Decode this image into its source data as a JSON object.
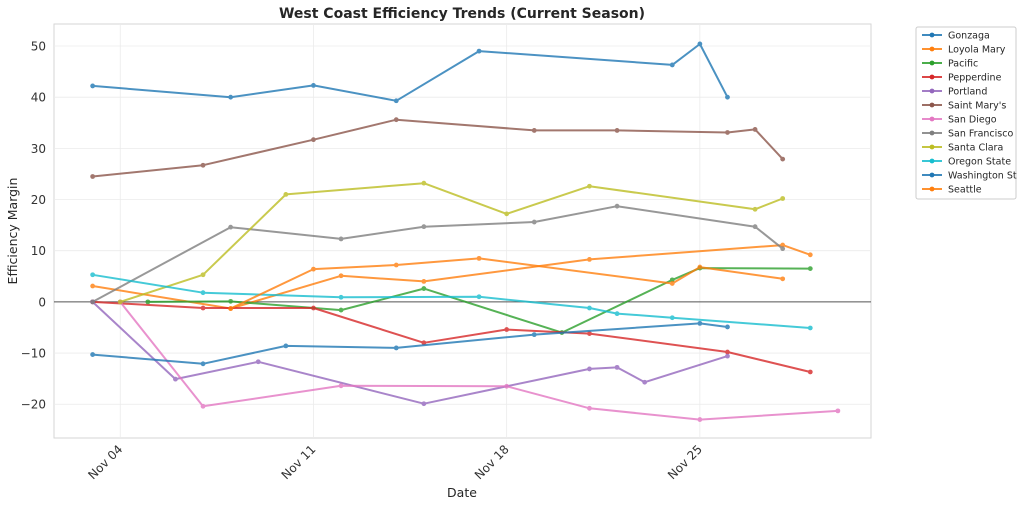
{
  "chart_data": {
    "type": "line",
    "title": "West Coast Efficiency Trends (Current Season)",
    "xlabel": "Date",
    "ylabel": "Efficiency Margin",
    "x_unit": "day of November",
    "xlim": [
      1.6,
      31.2
    ],
    "ylim": [
      -26.6,
      54.3
    ],
    "x_ticks": [
      {
        "value": 4,
        "label": "Nov 04"
      },
      {
        "value": 11,
        "label": "Nov 11"
      },
      {
        "value": 18,
        "label": "Nov 18"
      },
      {
        "value": 25,
        "label": "Nov 25"
      }
    ],
    "y_ticks": [
      {
        "value": 50,
        "label": "50"
      },
      {
        "value": 40,
        "label": "40"
      },
      {
        "value": 30,
        "label": "30"
      },
      {
        "value": 20,
        "label": "20"
      },
      {
        "value": 10,
        "label": "10"
      },
      {
        "value": 0,
        "label": "0"
      },
      {
        "value": -10,
        "label": "−10"
      },
      {
        "value": -20,
        "label": "−20"
      }
    ],
    "grid": true,
    "reference_line": 0,
    "legend_position": "outside-top-right",
    "series": [
      {
        "name": "Gonzaga",
        "color": "#1f77b4",
        "x": [
          3,
          8,
          11,
          14,
          17,
          24,
          25,
          26
        ],
        "y": [
          42.2,
          40.0,
          42.3,
          39.3,
          49.0,
          46.3,
          50.4,
          40.0
        ]
      },
      {
        "name": "Loyola Mary",
        "color": "#ff7f0e",
        "x": [
          3,
          8,
          12,
          15,
          21,
          28,
          29
        ],
        "y": [
          3.1,
          -1.3,
          5.1,
          4.0,
          8.3,
          11.1,
          9.2
        ]
      },
      {
        "name": "Pacific",
        "color": "#2ca02c",
        "x": [
          5,
          8,
          12,
          15,
          20,
          24,
          25,
          29
        ],
        "y": [
          0.0,
          0.1,
          -1.6,
          2.6,
          -6.0,
          4.3,
          6.6,
          6.5
        ]
      },
      {
        "name": "Pepperdine",
        "color": "#d62728",
        "x": [
          3,
          7,
          11,
          15,
          18,
          21,
          26,
          29
        ],
        "y": [
          0.0,
          -1.2,
          -1.2,
          -8.0,
          -5.4,
          -6.2,
          -9.8,
          -13.7
        ]
      },
      {
        "name": "Portland",
        "color": "#9467bd",
        "x": [
          3,
          6,
          9,
          15,
          21,
          22,
          23,
          26
        ],
        "y": [
          0.0,
          -15.1,
          -11.7,
          -19.9,
          -13.1,
          -12.8,
          -15.7,
          -10.6
        ]
      },
      {
        "name": "Saint Mary's",
        "color": "#8c564b",
        "x": [
          3,
          7,
          11,
          14,
          19,
          22,
          26,
          27,
          28
        ],
        "y": [
          24.5,
          26.7,
          31.7,
          35.6,
          33.5,
          33.5,
          33.1,
          33.7,
          27.9
        ]
      },
      {
        "name": "San Diego",
        "color": "#e377c2",
        "x": [
          4,
          7,
          12,
          18,
          21,
          25,
          30
        ],
        "y": [
          0.0,
          -20.4,
          -16.4,
          -16.5,
          -20.8,
          -23.0,
          -21.3
        ]
      },
      {
        "name": "San Francisco",
        "color": "#7f7f7f",
        "x": [
          3,
          8,
          12,
          15,
          19,
          22,
          27,
          28
        ],
        "y": [
          0.0,
          14.6,
          12.3,
          14.7,
          15.6,
          18.7,
          14.7,
          10.4
        ]
      },
      {
        "name": "Santa Clara",
        "color": "#bcbd22",
        "x": [
          4,
          7,
          10,
          15,
          18,
          21,
          27,
          28
        ],
        "y": [
          0.0,
          5.3,
          21.0,
          23.2,
          17.2,
          22.6,
          18.1,
          20.2
        ]
      },
      {
        "name": "Oregon State",
        "color": "#17becf",
        "x": [
          3,
          7,
          12,
          17,
          21,
          22,
          24,
          29
        ],
        "y": [
          5.3,
          1.8,
          0.9,
          1.0,
          -1.2,
          -2.3,
          -3.1,
          -5.1
        ]
      },
      {
        "name": "Washington St",
        "color": "#1f77b4",
        "x": [
          3,
          7,
          10,
          14,
          19,
          25,
          26
        ],
        "y": [
          -10.3,
          -12.1,
          -8.6,
          -9.0,
          -6.4,
          -4.2,
          -4.9
        ]
      },
      {
        "name": "Seattle",
        "color": "#ff7f0e",
        "x": [
          8,
          11,
          14,
          17,
          24,
          25,
          28
        ],
        "y": [
          -1.3,
          6.4,
          7.2,
          8.5,
          3.6,
          6.8,
          4.5
        ]
      }
    ]
  }
}
